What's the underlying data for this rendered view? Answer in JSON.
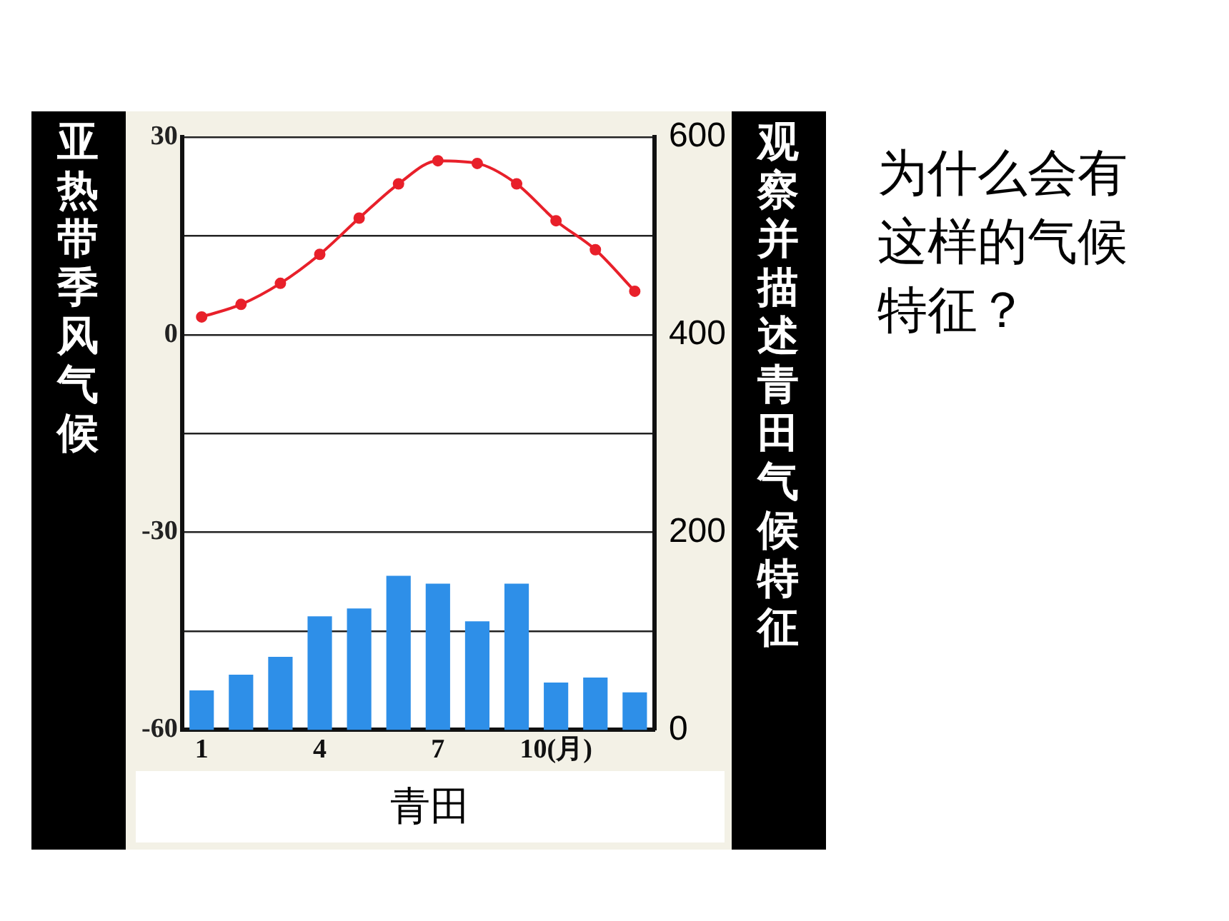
{
  "chart_data": {
    "type": "bar",
    "title": "青田",
    "annotations": [
      "亚热带季风气候",
      "观察并描述青田气候特征",
      "为什么会有这样的气候特征？"
    ],
    "categories": [
      "1",
      null,
      null,
      "4",
      null,
      null,
      "7",
      null,
      null,
      "10(月)",
      null,
      null
    ],
    "series": [
      {
        "type": "line",
        "color": "#e8202a",
        "values": [
          2.7,
          4.6,
          7.8,
          12.2,
          17.7,
          22.9,
          26.4,
          26.0,
          22.9,
          17.3,
          12.9,
          6.6
        ]
      },
      {
        "axis": "y2",
        "color": "#2e8fe8",
        "values": [
          40,
          56,
          74,
          115,
          123,
          156,
          148,
          110,
          148,
          48,
          53,
          38
        ]
      }
    ],
    "ylim": [
      -60,
      30
    ],
    "yticks": [
      -60,
      {
        "value": -45,
        "label": null
      },
      -30,
      {
        "value": -15,
        "label": null
      },
      0,
      {
        "value": 15,
        "label": null
      },
      30
    ],
    "y2lim": [
      0,
      600
    ],
    "y2ticks": [
      0,
      200,
      400,
      600
    ],
    "grid": "y",
    "marker": "circle",
    "legend": false
  }
}
